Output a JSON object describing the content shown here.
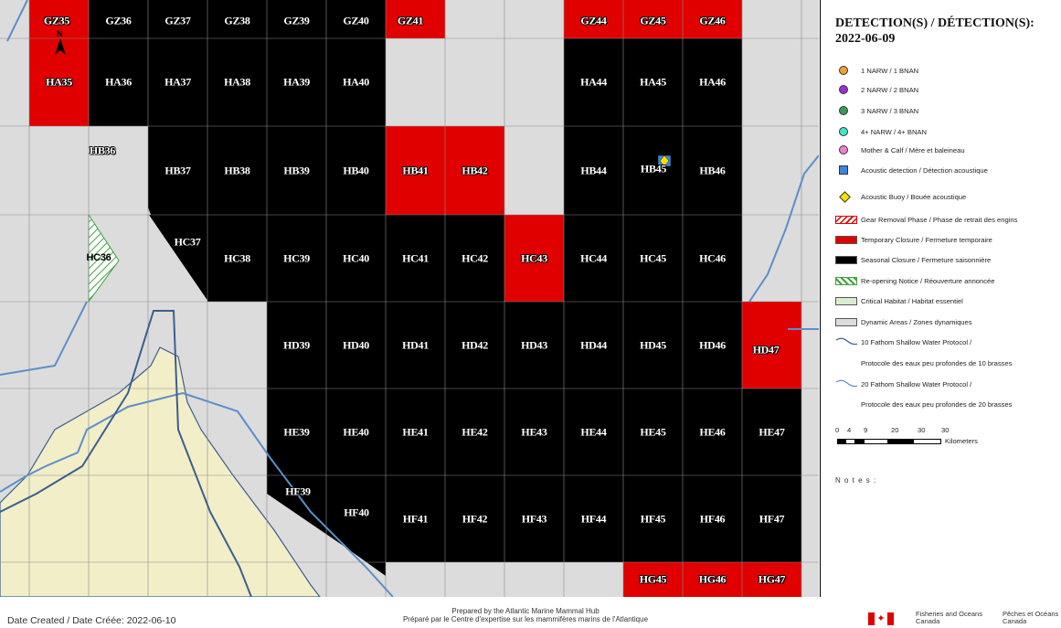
{
  "map": {
    "cells_black": [
      "GZ36",
      "GZ37",
      "GZ38",
      "GZ39",
      "GZ40",
      "HA36",
      "HA37",
      "HA38",
      "HA39",
      "HA40",
      "HA44",
      "HA45",
      "HA46",
      "HB37",
      "HB38",
      "HB39",
      "HB40",
      "HB44",
      "HB45",
      "HB46",
      "HC38",
      "HC39",
      "HC40",
      "HC41",
      "HC42",
      "HC44",
      "HC45",
      "HC46",
      "HD39",
      "HD40",
      "HD41",
      "HD42",
      "HD43",
      "HD44",
      "HD45",
      "HD46",
      "HE39",
      "HE40",
      "HE41",
      "HE42",
      "HE43",
      "HE44",
      "HE45",
      "HE46",
      "HE47",
      "HF41",
      "HF42",
      "HF43",
      "HF44",
      "HF45",
      "HF46",
      "HF47"
    ],
    "cells_red": [
      "GZ35",
      "GZ41",
      "GZ44",
      "GZ45",
      "GZ46",
      "HA35",
      "HB41",
      "HB42",
      "HC43",
      "HD47",
      "HG45",
      "HG46",
      "HG47"
    ],
    "labels": [
      {
        "text": "GZ35"
      },
      {
        "text": "GZ36"
      },
      {
        "text": "GZ37"
      },
      {
        "text": "GZ38"
      },
      {
        "text": "GZ39"
      },
      {
        "text": "GZ40"
      },
      {
        "text": "GZ41"
      },
      {
        "text": "GZ44"
      },
      {
        "text": "GZ45"
      },
      {
        "text": "GZ46"
      },
      {
        "text": "HA35"
      },
      {
        "text": "HA36"
      },
      {
        "text": "HA37"
      },
      {
        "text": "HA38"
      },
      {
        "text": "HA39"
      },
      {
        "text": "HA40"
      },
      {
        "text": "HA44"
      },
      {
        "text": "HA45"
      },
      {
        "text": "HA46"
      },
      {
        "text": "HB36"
      },
      {
        "text": "HB37"
      },
      {
        "text": "HB38"
      },
      {
        "text": "HB39"
      },
      {
        "text": "HB40"
      },
      {
        "text": "HB41"
      },
      {
        "text": "HB42"
      },
      {
        "text": "HB44"
      },
      {
        "text": "HB45"
      },
      {
        "text": "HB46"
      },
      {
        "text": "HC36"
      },
      {
        "text": "HC37"
      },
      {
        "text": "HC38"
      },
      {
        "text": "HC39"
      },
      {
        "text": "HC40"
      },
      {
        "text": "HC41"
      },
      {
        "text": "HC42"
      },
      {
        "text": "HC43"
      },
      {
        "text": "HC44"
      },
      {
        "text": "HC45"
      },
      {
        "text": "HC46"
      },
      {
        "text": "HD39"
      },
      {
        "text": "HD40"
      },
      {
        "text": "HD41"
      },
      {
        "text": "HD42"
      },
      {
        "text": "HD43"
      },
      {
        "text": "HD44"
      },
      {
        "text": "HD45"
      },
      {
        "text": "HD46"
      },
      {
        "text": "HD47"
      },
      {
        "text": "HE39"
      },
      {
        "text": "HE40"
      },
      {
        "text": "HE41"
      },
      {
        "text": "HE42"
      },
      {
        "text": "HE43"
      },
      {
        "text": "HE44"
      },
      {
        "text": "HE45"
      },
      {
        "text": "HE46"
      },
      {
        "text": "HE47"
      },
      {
        "text": "HF39"
      },
      {
        "text": "HF40"
      },
      {
        "text": "HF41"
      },
      {
        "text": "HF42"
      },
      {
        "text": "HF43"
      },
      {
        "text": "HF44"
      },
      {
        "text": "HF45"
      },
      {
        "text": "HF46"
      },
      {
        "text": "HF47"
      },
      {
        "text": "HG45"
      },
      {
        "text": "HG46"
      },
      {
        "text": "HG47"
      }
    ],
    "north_label": "N",
    "colors": {
      "closure_black": "#000000",
      "closure_red": "#e00000",
      "dynamic_area": "#dcdcdc",
      "land": "#f2eec8",
      "water_line": "#5b8fc9",
      "shallow_line": "#3a5f8f",
      "reopen_hatch": "#3fa13f"
    }
  },
  "legend": {
    "title_line1": "DETECTION(S) / DÉTECTION(S):",
    "title_line2": "2022-06-09",
    "items": [
      {
        "label": "1 NARW / 1 BNAN",
        "color": "#f0a030",
        "icon": "orange-circle-icon"
      },
      {
        "label": "2 NARW / 2 BNAN",
        "color": "#9b30d0",
        "icon": "purple-circle-icon"
      },
      {
        "label": "3 NARW / 3 BNAN",
        "color": "#3a9a5a",
        "icon": "green-circle-icon"
      },
      {
        "label": "4+ NARW / 4+ BNAN",
        "color": "#40e8c8",
        "icon": "teal-circle-icon"
      },
      {
        "label": "Mother & Calf / Mère et baleineau",
        "color": "#f080d0",
        "icon": "pink-circle-icon"
      },
      {
        "label": "Acoustic detection / Détection acoustique",
        "color": "#3a86e0",
        "icon": "blue-square-icon"
      },
      {
        "label": "Acoustic Buoy / Bouée acoustique",
        "color": "#f5e000",
        "icon": "yellow-diamond-icon"
      },
      {
        "label": "Gear Removal Phase / Phase de retrait des engins",
        "color": "#e00000",
        "icon": "red-hatch-icon"
      },
      {
        "label": "Temporary Closure / Fermeture temporaire",
        "color": "#e00000",
        "icon": "red-box-icon"
      },
      {
        "label": "Seasonal Closure / Fermeture saisonnière",
        "color": "#000000",
        "icon": "black-box-icon"
      },
      {
        "label": "Re-opening Notice / Réouverture  annoncée",
        "color": "#3fa13f",
        "icon": "green-hatch-icon"
      },
      {
        "label": "Critical Habitat / Habitat essentiel",
        "color": "#d8ecd0",
        "icon": "green-box-icon"
      },
      {
        "label": "Dynamic Areas / Zones dynamiques",
        "color": "#dcdcdc",
        "icon": "gray-box-icon"
      },
      {
        "label": "10 Fathom Shallow Water Protocol /",
        "color": "#3a5f8f",
        "icon": "dark-blue-line-icon"
      },
      {
        "label": "Protocole des eaux peu profondes de 10 brasses",
        "color": "",
        "icon": ""
      },
      {
        "label": "20 Fathom Shallow Water Protocol /",
        "color": "#5b8fc9",
        "icon": "light-blue-line-icon"
      },
      {
        "label": "Protocole des eaux peu profondes de 20 brasses",
        "color": "",
        "icon": ""
      }
    ],
    "scale_ticks": [
      "0",
      "4",
      "9",
      "20",
      "30",
      "30"
    ],
    "scale_unit": "Kilometers",
    "notes_label": "N o t e s :"
  },
  "footer": {
    "date_created": "Date Created / Date Créée: 2022-06-10",
    "prepared_en": "Prepared by the Atlantic Marine Mammal Hub",
    "prepared_fr": "Préparé par le Centre d'expertise sur les mammifères marins de l'Atlantique",
    "dfo_en_line1": "Fisheries and Oceans",
    "dfo_en_line2": "Canada",
    "dfo_fr_line1": "Pêches et Océans",
    "dfo_fr_line2": "Canada"
  }
}
